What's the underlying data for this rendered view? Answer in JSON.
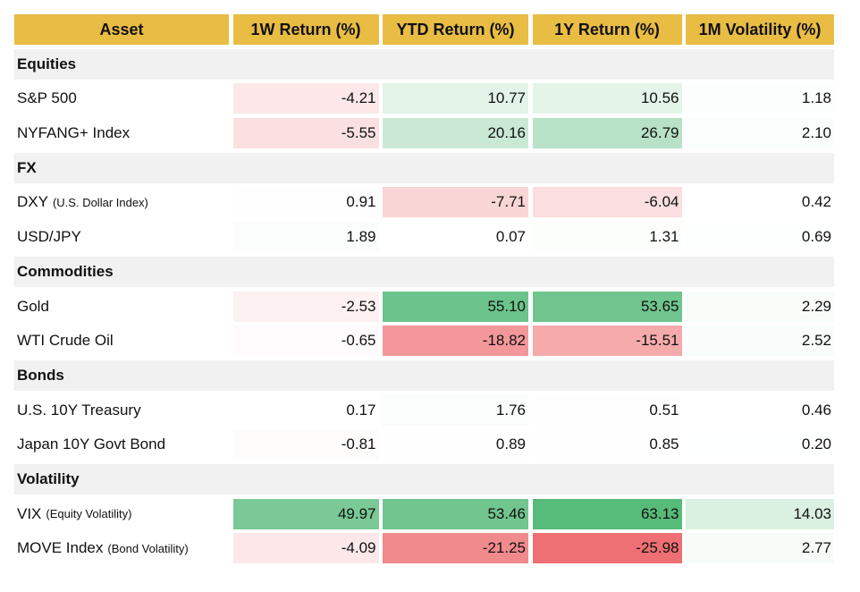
{
  "table": {
    "columns": [
      "Asset",
      "1W Return (%)",
      "YTD Return (%)",
      "1Y Return (%)",
      "1M Volatility (%)"
    ],
    "sections": [
      {
        "title": "Equities",
        "rows": [
          {
            "asset": "S&P 500",
            "values": [
              "-4.21",
              "10.77",
              "10.56",
              "1.18"
            ]
          },
          {
            "asset": "NYFANG+ Index",
            "values": [
              "-5.55",
              "20.16",
              "26.79",
              "2.10"
            ]
          }
        ]
      },
      {
        "title": "FX",
        "rows": [
          {
            "asset": "DXY",
            "note": "(U.S. Dollar Index)",
            "values": [
              "0.91",
              "-7.71",
              "-6.04",
              "0.42"
            ]
          },
          {
            "asset": "USD/JPY",
            "values": [
              "1.89",
              "0.07",
              "1.31",
              "0.69"
            ]
          }
        ]
      },
      {
        "title": "Commodities",
        "rows": [
          {
            "asset": "Gold",
            "values": [
              "-2.53",
              "55.10",
              "53.65",
              "2.29"
            ]
          },
          {
            "asset": "WTI Crude Oil",
            "values": [
              "-0.65",
              "-18.82",
              "-15.51",
              "2.52"
            ]
          }
        ]
      },
      {
        "title": "Bonds",
        "rows": [
          {
            "asset": "U.S. 10Y Treasury",
            "values": [
              "0.17",
              "1.76",
              "0.51",
              "0.46"
            ]
          },
          {
            "asset": "Japan 10Y Govt Bond",
            "values": [
              "-0.81",
              "0.89",
              "0.85",
              "0.20"
            ]
          }
        ]
      },
      {
        "title": "Volatility",
        "rows": [
          {
            "asset": "VIX",
            "note": "(Equity Volatility)",
            "values": [
              "49.97",
              "53.46",
              "63.13",
              "14.03"
            ]
          },
          {
            "asset": "MOVE Index",
            "note": "(Bond Volatility)",
            "values": [
              "-4.09",
              "-21.25",
              "-25.98",
              "2.77"
            ]
          }
        ]
      }
    ]
  }
}
